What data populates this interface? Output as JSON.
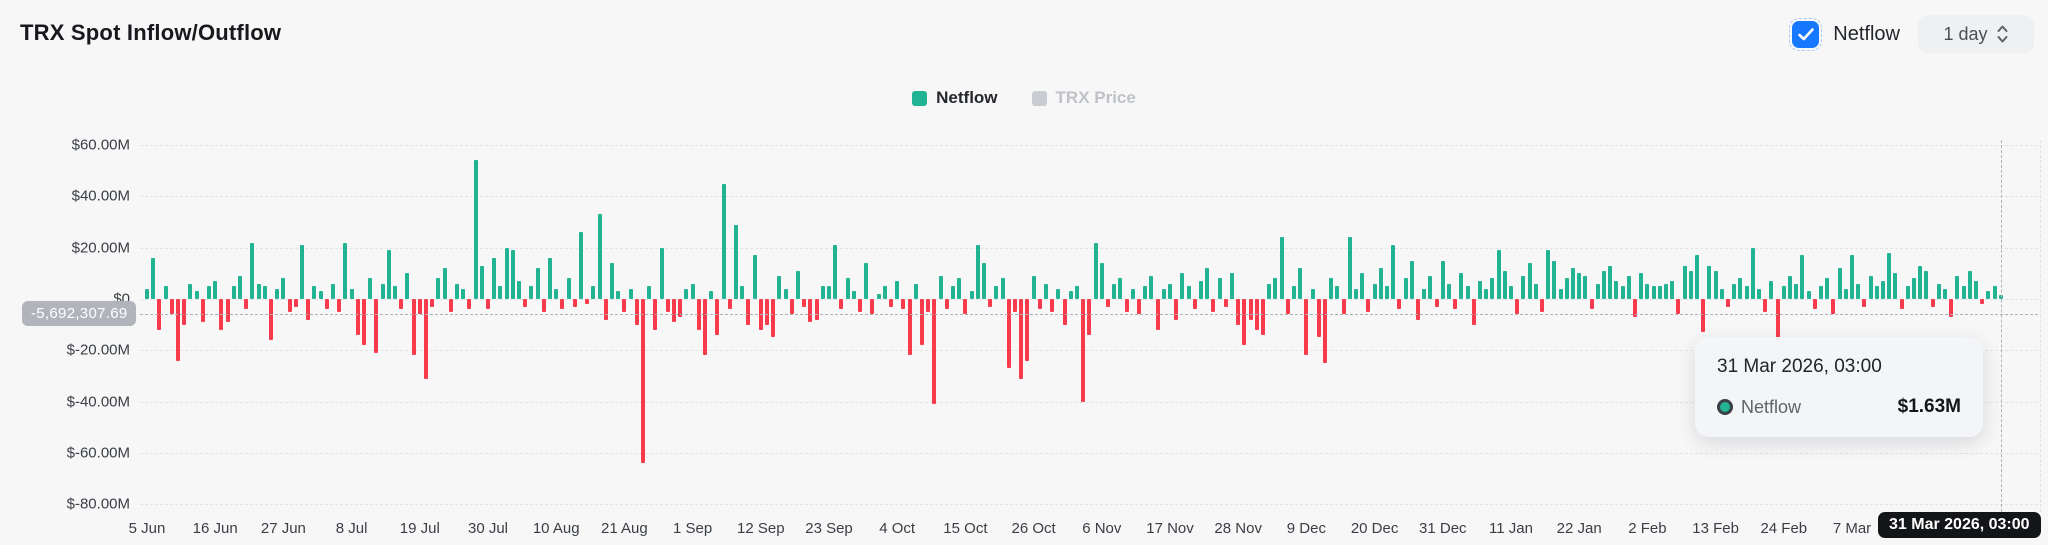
{
  "header": {
    "title": "TRX Spot Inflow/Outflow",
    "netflow_checkbox": {
      "label": "Netflow",
      "checked": true,
      "color": "#1677ff"
    },
    "interval_select": {
      "value": "1 day"
    }
  },
  "legend": {
    "items": [
      {
        "label": "Netflow",
        "color": "#21b392",
        "active": true
      },
      {
        "label": "TRX Price",
        "color": "#c9ccd0",
        "active": false
      }
    ]
  },
  "crosshair": {
    "y_axis_badge": "-5,692,307.69",
    "x_axis_badge": "31 Mar 2026, 03:00",
    "y_value_millions": -5.692,
    "x_day_index": 299
  },
  "tooltip": {
    "title": "31 Mar 2026, 03:00",
    "series_label": "Netflow",
    "value": "$1.63M",
    "marker_color": "#21b392"
  },
  "chart_data": {
    "type": "bar",
    "title": "TRX Spot Inflow/Outflow",
    "unit": "USD, millions",
    "ylim": [
      -80,
      60
    ],
    "grid": "dashed-horizontal",
    "legend_position": "top-center",
    "y_ticks": [
      "$60.00M",
      "$40.00M",
      "$20.00M",
      "$0",
      "$-20.00M",
      "$-40.00M",
      "$-60.00M",
      "$-80.00M"
    ],
    "y_tick_values": [
      60,
      40,
      20,
      0,
      -20,
      -40,
      -60,
      -80
    ],
    "x_tick_labels": [
      "5 Jun",
      "16 Jun",
      "27 Jun",
      "8 Jul",
      "19 Jul",
      "30 Jul",
      "10 Aug",
      "21 Aug",
      "1 Sep",
      "12 Sep",
      "23 Sep",
      "4 Oct",
      "15 Oct",
      "26 Oct",
      "6 Nov",
      "17 Nov",
      "28 Nov",
      "9 Dec",
      "20 Dec",
      "31 Dec",
      "11 Jan",
      "22 Jan",
      "2 Feb",
      "13 Feb",
      "24 Feb",
      "7 Mar"
    ],
    "x_tick_interval_days": 11,
    "hovered_point": {
      "date": "31 Mar 2026, 03:00",
      "netflow_millions": 1.63
    },
    "series": [
      {
        "name": "Netflow",
        "visible": true,
        "color_positive": "#21b392",
        "color_negative": "#f83b4c",
        "values_millions": [
          4,
          16,
          -12,
          5,
          -6,
          -24,
          -10,
          6,
          3,
          -9,
          5,
          7,
          -12,
          -9,
          5,
          9,
          -4,
          22,
          6,
          5,
          -16,
          4,
          8,
          -5,
          -3,
          21,
          -8,
          5,
          3,
          -4,
          6,
          -5,
          22,
          4,
          -14,
          -18,
          8,
          -21,
          6,
          19,
          5,
          -4,
          10,
          -22,
          -6,
          -31,
          -3,
          8,
          12,
          -5,
          6,
          4,
          -4,
          54,
          13,
          -4,
          16,
          5,
          20,
          19,
          7,
          -3,
          5,
          12,
          -5,
          16,
          4,
          -4,
          8,
          -3,
          26,
          -2,
          5,
          33,
          -8,
          14,
          3,
          -5,
          4,
          -10,
          -64,
          5,
          -12,
          20,
          -5,
          -9,
          -7,
          4,
          6,
          -12,
          -22,
          3,
          -14,
          45,
          -4,
          29,
          5,
          -10,
          17,
          -12,
          -10,
          -15,
          9,
          4,
          -6,
          11,
          -3,
          -9,
          -8,
          5,
          5,
          21,
          -4,
          8,
          3,
          -5,
          14,
          -6,
          2,
          5,
          -3,
          7,
          -4,
          -22,
          6,
          -18,
          -5,
          -41,
          9,
          -4,
          5,
          8,
          -6,
          3,
          21,
          14,
          -3,
          5,
          8,
          -27,
          -5,
          -31,
          -24,
          9,
          -4,
          6,
          -5,
          4,
          -10,
          3,
          5,
          -40,
          -14,
          22,
          14,
          -3,
          6,
          8,
          -5,
          4,
          -6,
          5,
          9,
          -12,
          4,
          6,
          -8,
          10,
          5,
          -4,
          7,
          12,
          -5,
          8,
          -3,
          10,
          -10,
          -18,
          -8,
          -12,
          -14,
          6,
          8,
          24,
          -6,
          5,
          12,
          -22,
          4,
          -15,
          -25,
          8,
          5,
          -6,
          24,
          4,
          10,
          -5,
          6,
          12,
          5,
          21,
          -4,
          8,
          15,
          -8,
          4,
          9,
          -3,
          15,
          6,
          -4,
          10,
          5,
          -10,
          7,
          4,
          8,
          19,
          11,
          5,
          -6,
          9,
          14,
          6,
          -5,
          19,
          15,
          4,
          8,
          12,
          10,
          9,
          -4,
          6,
          11,
          13,
          7,
          5,
          9,
          -7,
          10,
          6,
          5,
          5,
          6,
          7,
          -6,
          13,
          11,
          17,
          -13,
          13,
          11,
          4,
          -3,
          6,
          8,
          5,
          20,
          4,
          -5,
          7,
          -16,
          5,
          9,
          6,
          17,
          3,
          -4,
          5,
          8,
          -6,
          12,
          4,
          17,
          6,
          -3,
          9,
          5,
          7,
          18,
          10,
          -4,
          5,
          8,
          13,
          11,
          -3,
          6,
          4,
          -7,
          9,
          5,
          11,
          7,
          -2,
          3,
          5,
          1.63
        ]
      },
      {
        "name": "TRX Price",
        "visible": false,
        "color": "#c9ccd0"
      }
    ]
  }
}
